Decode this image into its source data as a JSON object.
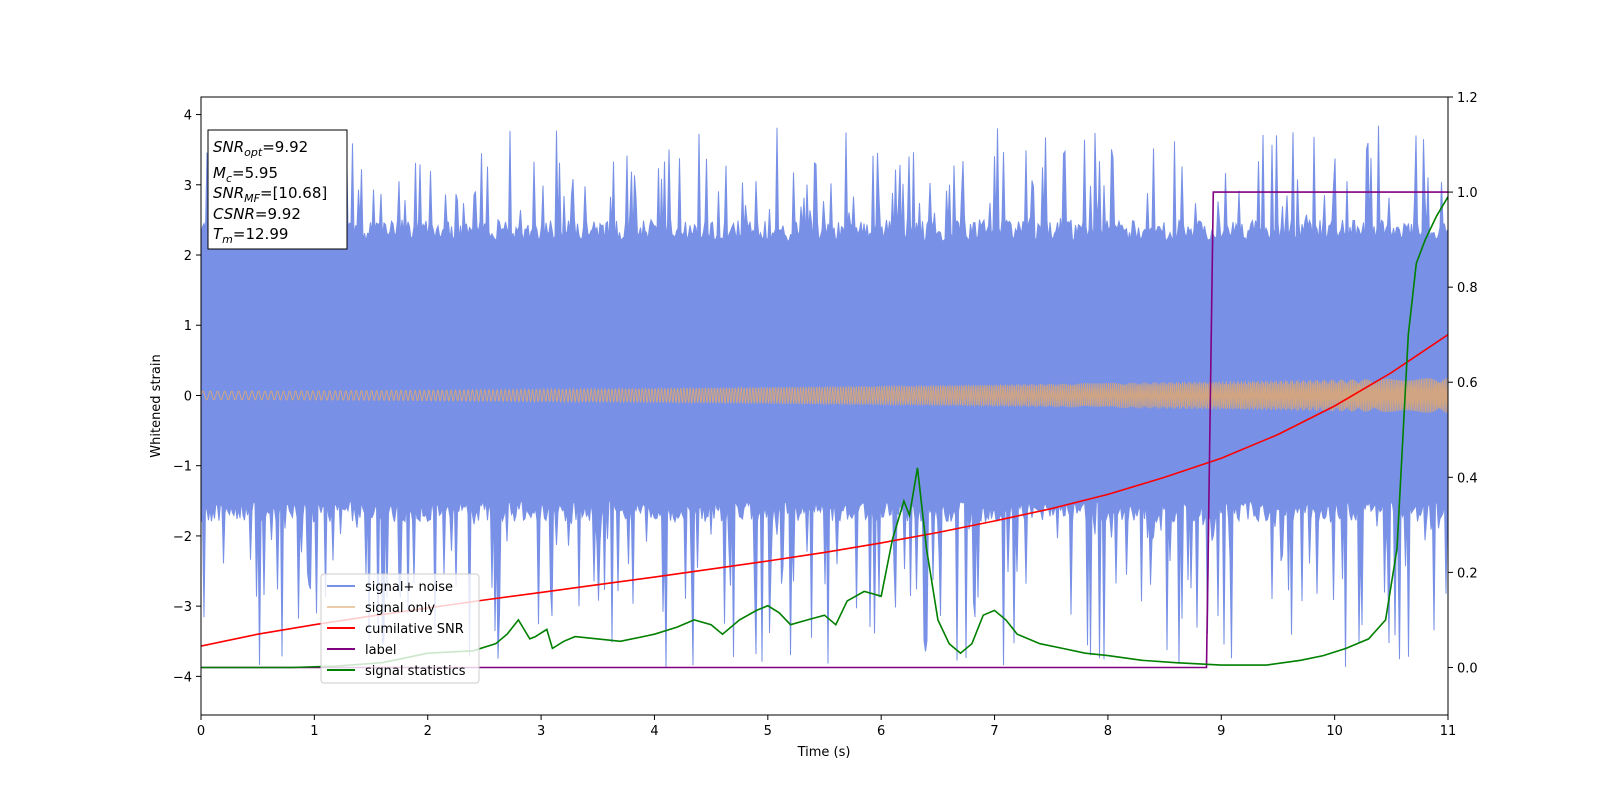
{
  "chart_data": {
    "type": "line",
    "xlabel": "Time (s)",
    "ylabel": "Whitened strain",
    "xlim": [
      0,
      11
    ],
    "ylim": [
      -4.55,
      4.25
    ],
    "y2lim": [
      -0.1,
      1.2
    ],
    "xticks": [
      "0",
      "1",
      "2",
      "3",
      "4",
      "5",
      "6",
      "7",
      "8",
      "9",
      "10",
      "11"
    ],
    "yticks": [
      "−4",
      "−3",
      "−2",
      "−1",
      "0",
      "1",
      "2",
      "3",
      "4"
    ],
    "y2ticks": [
      "0.0",
      "0.2",
      "0.4",
      "0.6",
      "0.8",
      "1.0",
      "1.2"
    ],
    "grid": false,
    "legend_position": "lower-left",
    "info_box": {
      "snr_opt": {
        "sym": "SNR",
        "sub": "opt",
        "val": "=9.92"
      },
      "mc": {
        "sym": "M",
        "sub": "c",
        "val": "=5.95"
      },
      "snr_mf": {
        "sym": "SNR",
        "sub": "MF",
        "val": "=[10.68]"
      },
      "csnr": {
        "sym": "CSNR",
        "sub": "",
        "val": "=9.92"
      },
      "tm": {
        "sym": "T",
        "sub": "m",
        "val": "=12.99"
      }
    },
    "series": [
      {
        "name": "signal+ noise",
        "axis": "left",
        "color": "#7891e6",
        "kind": "noise",
        "core_band": [
          -1.5,
          2.2
        ],
        "peak_range": [
          -3.9,
          3.85
        ]
      },
      {
        "name": "signal only",
        "axis": "left",
        "color": "#e0a870",
        "kind": "chirp",
        "amplitude_start": 0.06,
        "amplitude_end": 0.25
      },
      {
        "name": "cumilative SNR",
        "axis": "right",
        "color": "#ff0000",
        "x": [
          0,
          0.5,
          1,
          1.5,
          2,
          2.5,
          3,
          3.5,
          4,
          4.5,
          5,
          5.5,
          6,
          6.5,
          7,
          7.5,
          8,
          8.5,
          9,
          9.5,
          10,
          10.5,
          11
        ],
        "y": [
          0.045,
          0.07,
          0.09,
          0.108,
          0.125,
          0.142,
          0.158,
          0.174,
          0.19,
          0.207,
          0.224,
          0.242,
          0.262,
          0.284,
          0.308,
          0.334,
          0.364,
          0.4,
          0.44,
          0.49,
          0.55,
          0.62,
          0.7
        ]
      },
      {
        "name": "label",
        "axis": "right",
        "color": "#800080",
        "x": [
          0,
          8.87,
          8.93,
          11
        ],
        "y": [
          0,
          0,
          1,
          1
        ]
      },
      {
        "name": "signal statistics",
        "axis": "right",
        "color": "#008000",
        "x": [
          0,
          0.8,
          1.2,
          1.6,
          2.0,
          2.4,
          2.6,
          2.7,
          2.8,
          2.9,
          2.95,
          3.05,
          3.1,
          3.2,
          3.3,
          3.5,
          3.7,
          3.9,
          4.0,
          4.2,
          4.35,
          4.5,
          4.6,
          4.75,
          4.9,
          5.0,
          5.1,
          5.2,
          5.35,
          5.5,
          5.6,
          5.7,
          5.85,
          6.0,
          6.1,
          6.2,
          6.25,
          6.32,
          6.4,
          6.5,
          6.6,
          6.7,
          6.8,
          6.9,
          7.0,
          7.1,
          7.2,
          7.4,
          7.6,
          7.8,
          8.0,
          8.3,
          8.6,
          9.0,
          9.4,
          9.7,
          9.9,
          10.1,
          10.3,
          10.45,
          10.55,
          10.65,
          10.72,
          10.8,
          10.9,
          11.0
        ],
        "y": [
          0,
          0,
          0.003,
          0.01,
          0.03,
          0.035,
          0.05,
          0.07,
          0.1,
          0.06,
          0.065,
          0.08,
          0.04,
          0.055,
          0.065,
          0.06,
          0.055,
          0.065,
          0.07,
          0.085,
          0.1,
          0.09,
          0.07,
          0.1,
          0.12,
          0.13,
          0.115,
          0.09,
          0.1,
          0.11,
          0.09,
          0.14,
          0.16,
          0.15,
          0.27,
          0.35,
          0.32,
          0.42,
          0.25,
          0.1,
          0.05,
          0.03,
          0.05,
          0.11,
          0.12,
          0.1,
          0.07,
          0.05,
          0.04,
          0.03,
          0.025,
          0.015,
          0.01,
          0.005,
          0.005,
          0.015,
          0.025,
          0.04,
          0.06,
          0.1,
          0.25,
          0.7,
          0.85,
          0.9,
          0.95,
          0.99
        ]
      }
    ]
  }
}
